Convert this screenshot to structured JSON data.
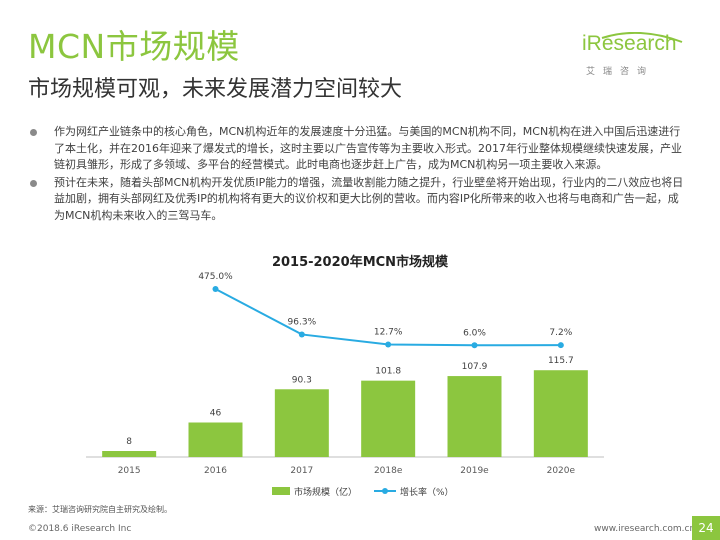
{
  "header": {
    "title": "MCN市场规模",
    "subtitle": "市场规模可观，未来发展潜力空间较大"
  },
  "logo": {
    "brand": "iResearch",
    "cn": "艾瑞咨询",
    "brand_color": "#8cc63f"
  },
  "bullets": [
    "作为网红产业链条中的核心角色，MCN机构近年的发展速度十分迅猛。与美国的MCN机构不同，MCN机构在进入中国后迅速进行了本土化，并在2016年迎来了爆发式的增长，这时主要以广告宣传等为主要收入形式。2017年行业整体规模继续快速发展，产业链初具雏形，形成了多领域、多平台的经营模式。此时电商也逐步赶上广告，成为MCN机构另一项主要收入来源。",
    "预计在未来，随着头部MCN机构开发优质IP能力的增强，流量收割能力随之提升，行业壁垒将开始出现，行业内的二八效应也将日益加剧，拥有头部网红及优秀IP的机构将有更大的议价权和更大比例的营收。而内容IP化所带来的收入也将与电商和广告一起，成为MCN机构未来收入的三驾马车。"
  ],
  "chart_data": {
    "type": "bar",
    "title": "2015-2020年MCN市场规模",
    "categories": [
      "2015",
      "2016",
      "2017",
      "2018e",
      "2019e",
      "2020e"
    ],
    "series": [
      {
        "name": "市场规模（亿）",
        "type": "bar",
        "values": [
          8,
          46,
          90.3,
          101.8,
          107.9,
          115.7
        ],
        "labels": [
          "8",
          "46",
          "90.3",
          "101.8",
          "107.9",
          "115.7"
        ],
        "color": "#8cc63f"
      },
      {
        "name": "增长率（%）",
        "type": "line",
        "x": [
          "2016",
          "2017",
          "2018e",
          "2019e",
          "2020e"
        ],
        "values": [
          475.0,
          96.3,
          12.7,
          6.0,
          7.2
        ],
        "labels": [
          "475.0%",
          "96.3%",
          "12.7%",
          "6.0%",
          "7.2%"
        ],
        "color": "#29abe2"
      }
    ],
    "legend_position": "bottom",
    "grid": false
  },
  "source": "来源：艾瑞咨询研究院自主研究及绘制。",
  "footer": {
    "copyright": "©2018.6 iResearch Inc",
    "website": "www.iresearch.com.cn",
    "page": "24"
  }
}
